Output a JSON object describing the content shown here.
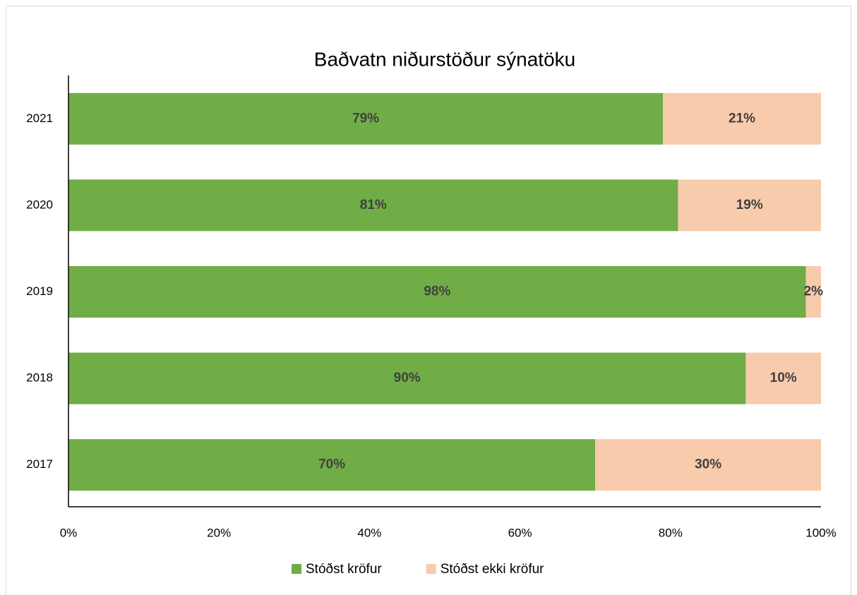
{
  "chart_data": {
    "type": "stacked_barh",
    "title": "Baðvatn niðurstöður sýnatöku",
    "categories": [
      "2021",
      "2020",
      "2019",
      "2018",
      "2017"
    ],
    "series": [
      {
        "name": "Stóðst kröfur",
        "color": "#70ad47",
        "values": [
          79,
          81,
          98,
          90,
          70
        ],
        "value_labels": [
          "79%",
          "81%",
          "98%",
          "90%",
          "70%"
        ]
      },
      {
        "name": "Stóðst ekki kröfur",
        "color": "#f8cbad",
        "values": [
          21,
          19,
          2,
          10,
          30
        ],
        "value_labels": [
          "21%",
          "19%",
          "2%",
          "10%",
          "30%"
        ]
      }
    ],
    "xlim": [
      0,
      100
    ],
    "xticks": [
      {
        "value": 0,
        "label": "0%"
      },
      {
        "value": 20,
        "label": "20%"
      },
      {
        "value": 40,
        "label": "40%"
      },
      {
        "value": 60,
        "label": "60%"
      },
      {
        "value": 80,
        "label": "80%"
      },
      {
        "value": 100,
        "label": "100%"
      }
    ],
    "grid": false,
    "legend": "bottom"
  }
}
